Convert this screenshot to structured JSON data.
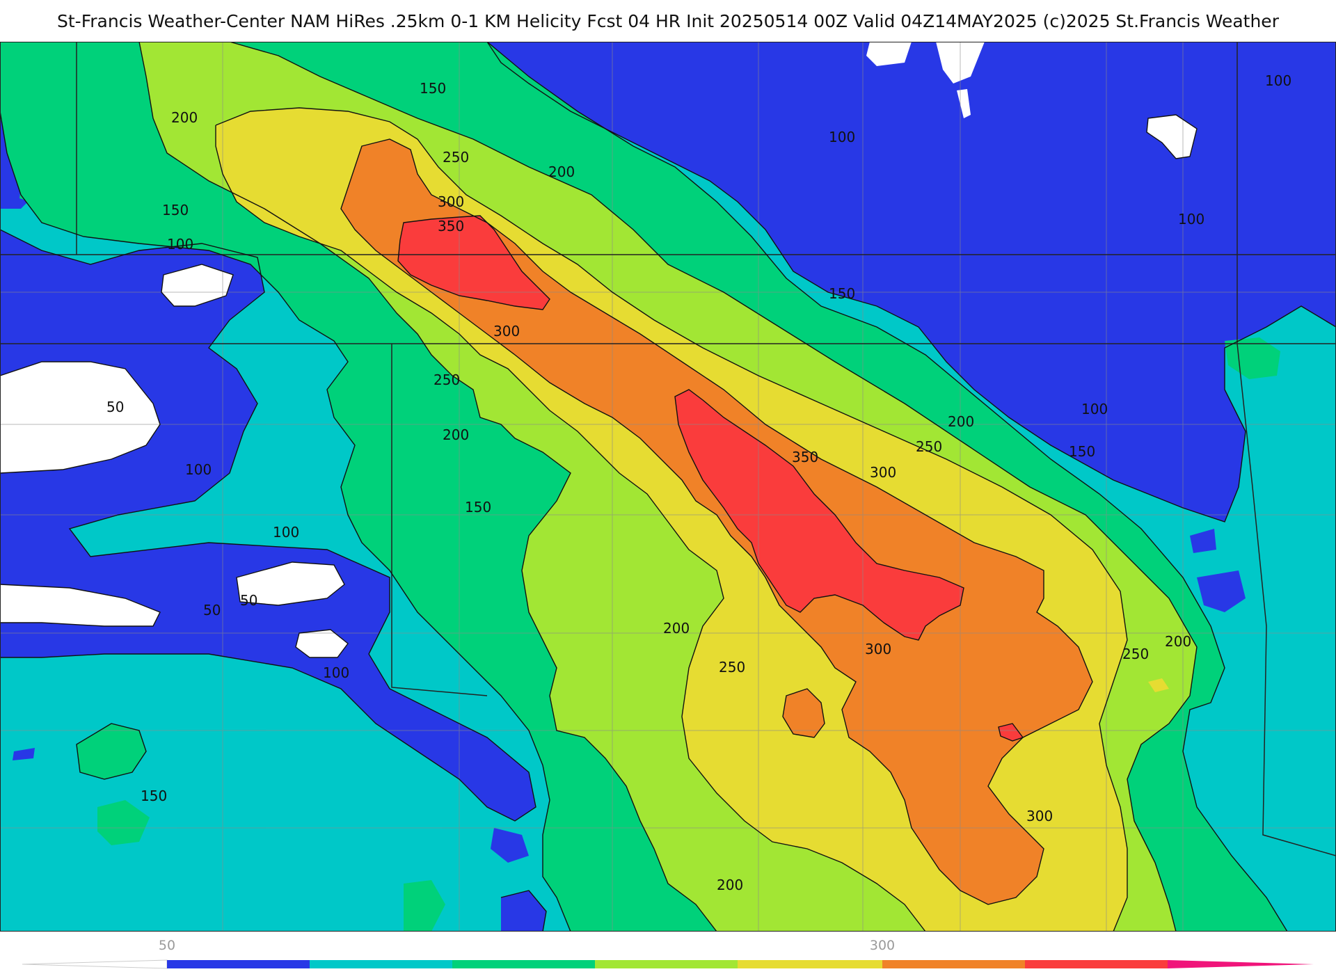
{
  "header": {
    "title": "St-Francis Weather-Center NAM HiRes .25km 0-1 KM Helicity Fcst 04 HR Init 20250514 00Z  Valid 04Z14MAY2025    (c)2025 St.Francis Weather"
  },
  "palette": {
    "lt50": "#ffffff",
    "b50_100": "#2838e6",
    "b100_150": "#00c8c8",
    "b150_200": "#00d17a",
    "b200_250": "#a2e634",
    "b250_300": "#e6dc32",
    "b300_350": "#f08228",
    "b350_400": "#fa3c3c",
    "gt400": "#f0147a",
    "contour": "#111111",
    "border": "#222222",
    "county": "#8a8a8a"
  },
  "contour_labels": [
    {
      "text": "150",
      "name": "contour-label-150-nw"
    },
    {
      "text": "200",
      "name": "contour-label-200-nw"
    },
    {
      "text": "250",
      "name": "contour-label-250-n"
    },
    {
      "text": "300",
      "name": "contour-label-300-n"
    },
    {
      "text": "350",
      "name": "contour-label-350-n"
    },
    {
      "text": "200",
      "name": "contour-label-200-n"
    },
    {
      "text": "150",
      "name": "contour-label-150-w"
    },
    {
      "text": "100",
      "name": "contour-label-100-w"
    },
    {
      "text": "100",
      "name": "contour-label-100-ne"
    },
    {
      "text": "100",
      "name": "contour-label-100-n"
    },
    {
      "text": "100",
      "name": "contour-label-100-e"
    },
    {
      "text": "150",
      "name": "contour-label-150-ne"
    },
    {
      "text": "300",
      "name": "contour-label-300-c"
    },
    {
      "text": "250",
      "name": "contour-label-250-c"
    },
    {
      "text": "200",
      "name": "contour-label-200-c"
    },
    {
      "text": "50",
      "name": "contour-label-50-w"
    },
    {
      "text": "100",
      "name": "contour-label-100-sw"
    },
    {
      "text": "150",
      "name": "contour-label-150-c"
    },
    {
      "text": "100",
      "name": "contour-label-100-s"
    },
    {
      "text": "350",
      "name": "contour-label-350-s"
    },
    {
      "text": "300",
      "name": "contour-label-300-e"
    },
    {
      "text": "250",
      "name": "contour-label-250-e"
    },
    {
      "text": "200",
      "name": "contour-label-200-e"
    },
    {
      "text": "100",
      "name": "contour-label-100-se"
    },
    {
      "text": "150",
      "name": "contour-label-150-e"
    },
    {
      "text": "50",
      "name": "contour-label-50-sw"
    },
    {
      "text": "50",
      "name": "contour-label-50-s"
    },
    {
      "text": "100",
      "name": "contour-label-100-ss"
    },
    {
      "text": "200",
      "name": "contour-label-200-s"
    },
    {
      "text": "250",
      "name": "contour-label-250-s"
    },
    {
      "text": "300",
      "name": "contour-label-300-s"
    },
    {
      "text": "250",
      "name": "contour-label-250-se"
    },
    {
      "text": "200",
      "name": "contour-label-200-se"
    },
    {
      "text": "150",
      "name": "contour-label-150-sw"
    },
    {
      "text": "200",
      "name": "contour-label-200-ss"
    },
    {
      "text": "300",
      "name": "contour-label-300-ss"
    }
  ],
  "colorbar": {
    "labels": [
      "50",
      "300"
    ]
  }
}
